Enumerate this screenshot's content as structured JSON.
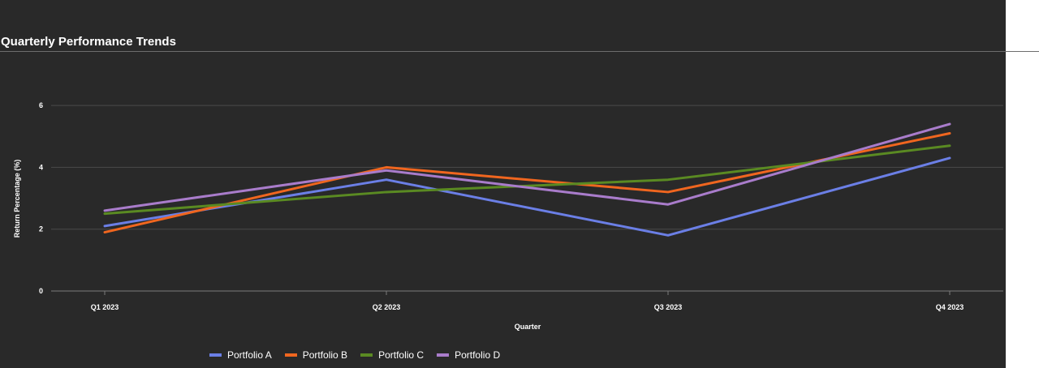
{
  "title": "Quarterly Performance Trends",
  "chart_data": {
    "type": "line",
    "title": "Quarterly Performance Trends",
    "xlabel": "Quarter",
    "ylabel": "Return Percentage (%)",
    "categories": [
      "Q1 2023",
      "Q2 2023",
      "Q3 2023",
      "Q4 2023"
    ],
    "ylim": [
      0,
      7
    ],
    "yticks": [
      0,
      2,
      4,
      6
    ],
    "grid": true,
    "legend_position": "bottom",
    "series": [
      {
        "name": "Portfolio A",
        "color": "#6b7fe6",
        "values": [
          2.1,
          3.6,
          1.8,
          4.3
        ]
      },
      {
        "name": "Portfolio B",
        "color": "#f0661f",
        "values": [
          1.9,
          4.0,
          3.2,
          5.1
        ]
      },
      {
        "name": "Portfolio C",
        "color": "#5a8a22",
        "values": [
          2.5,
          3.2,
          3.6,
          4.7
        ]
      },
      {
        "name": "Portfolio D",
        "color": "#a97ccb",
        "values": [
          2.6,
          3.9,
          2.8,
          5.4
        ]
      }
    ]
  }
}
